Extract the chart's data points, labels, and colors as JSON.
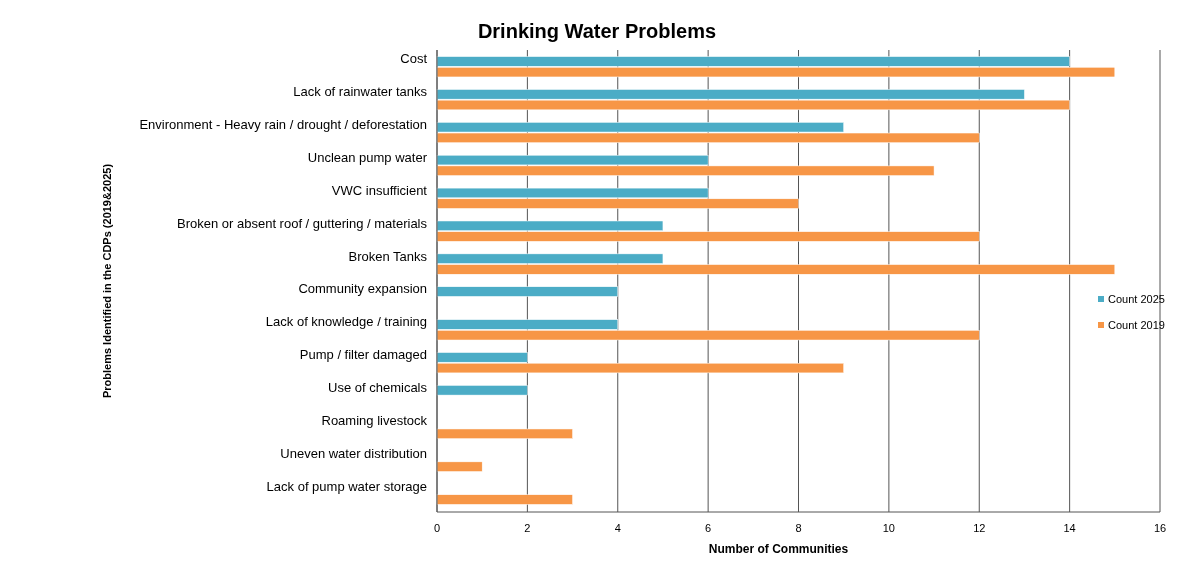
{
  "chart_data": {
    "type": "bar",
    "orientation": "horizontal",
    "title": "Drinking Water Problems",
    "xlabel": "Number of Communities",
    "ylabel": "Problems Identified in the CDPs (2019&2025)",
    "categories": [
      "Cost",
      "Lack of rainwater tanks",
      "Environment - Heavy rain / drought / deforestation",
      "Unclean pump water",
      "VWC insufficient",
      "Broken or absent roof / guttering / materials",
      "Broken Tanks",
      "Community expansion",
      "Lack of knowledge / training",
      "Pump / filter damaged",
      "Use of chemicals",
      "Roaming livestock",
      "Uneven water distribution",
      "Lack of pump water storage"
    ],
    "series": [
      {
        "name": "Count 2025",
        "color": "#4bacc6",
        "values": [
          14,
          13,
          9,
          6,
          6,
          5,
          5,
          4,
          4,
          2,
          2,
          null,
          null,
          null
        ]
      },
      {
        "name": "Count 2019",
        "color": "#f79646",
        "values": [
          15,
          14,
          12,
          11,
          8,
          12,
          15,
          null,
          12,
          9,
          null,
          3,
          1,
          3
        ]
      }
    ],
    "xlim": [
      0,
      16
    ],
    "xticks": [
      0,
      2,
      4,
      6,
      8,
      10,
      12,
      14,
      16
    ],
    "grid": "x",
    "legend": "right"
  }
}
